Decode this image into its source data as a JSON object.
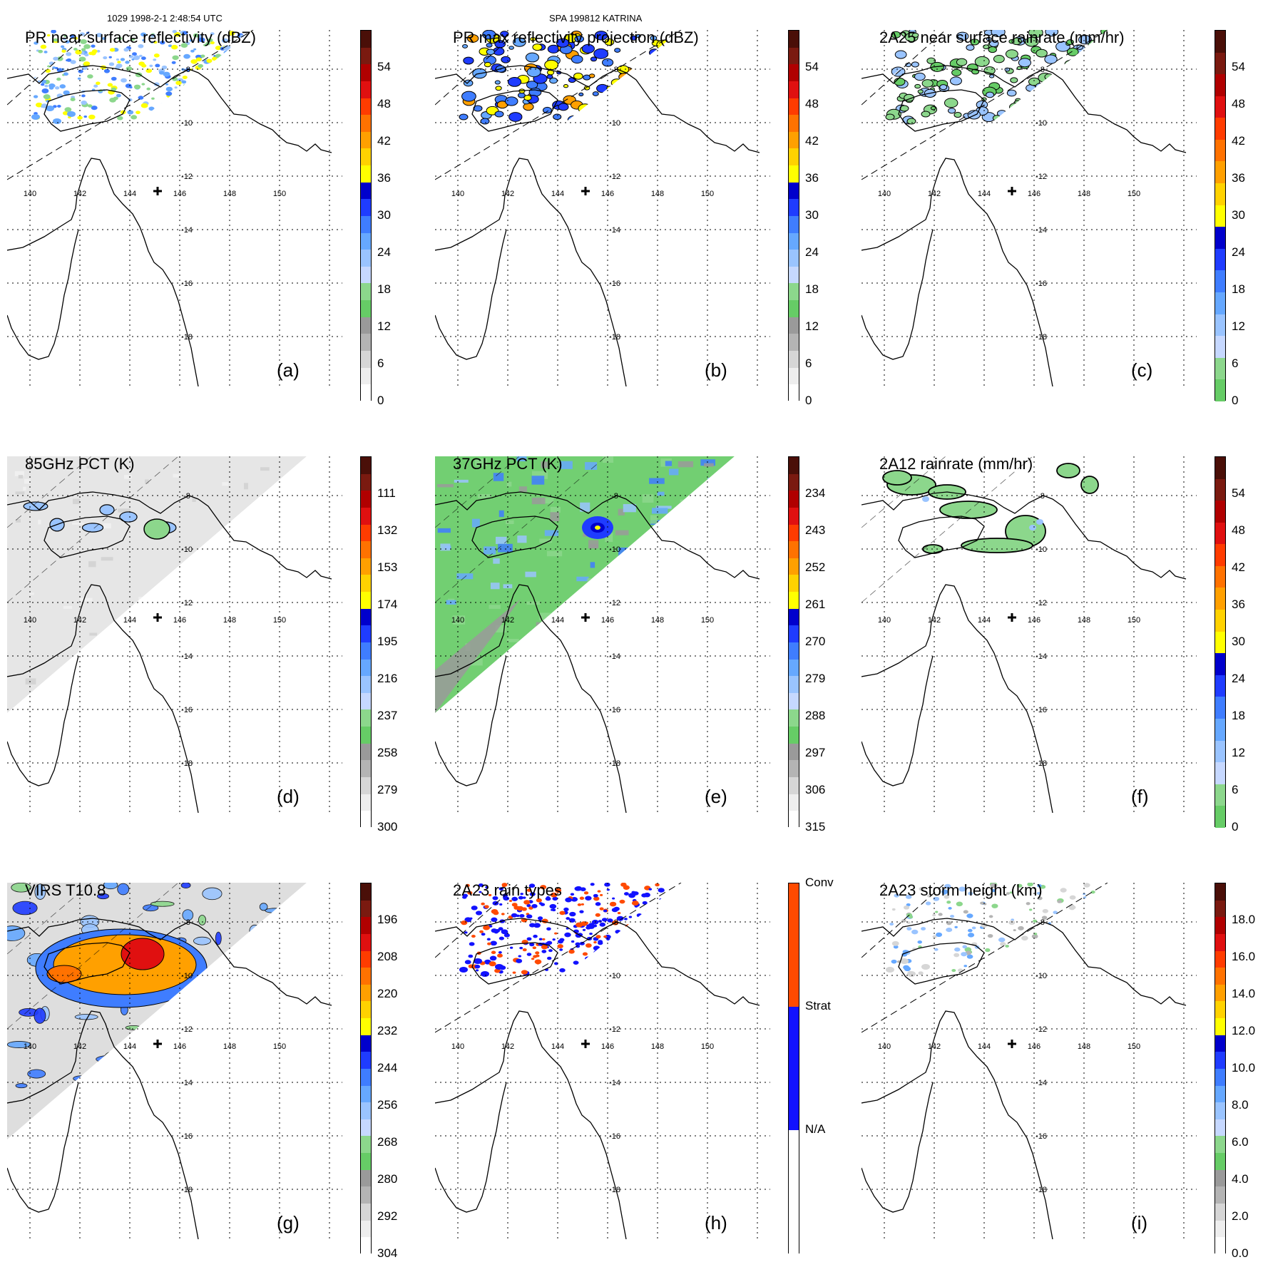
{
  "header": {
    "left": "1029 1998-2-1 2:48:54 UTC",
    "center": "SPA 199812 KATRINA"
  },
  "map": {
    "lon_labels": [
      "140",
      "142",
      "144",
      "146",
      "148",
      "150"
    ],
    "lat_labels": [
      "-8",
      "-10",
      "-12",
      "-14",
      "-16",
      "-18"
    ]
  },
  "panels": [
    {
      "id": "a",
      "title": "PR near surface reflectivity (dBZ)",
      "label": "(a)",
      "ticks": [
        "0",
        "6",
        "12",
        "18",
        "24",
        "30",
        "36",
        "42",
        "48",
        "54"
      ],
      "swath": "pr",
      "overlay": "pr_reflectivity"
    },
    {
      "id": "b",
      "title": "PR max reflectivity projection (dBZ)",
      "label": "(b)",
      "ticks": [
        "0",
        "6",
        "12",
        "18",
        "24",
        "30",
        "36",
        "42",
        "48",
        "54"
      ],
      "swath": "pr",
      "overlay": "pr_max"
    },
    {
      "id": "c",
      "title": "2A25 near surface rainrate (mm/hr)",
      "label": "(c)",
      "ticks": [
        "0",
        "6",
        "12",
        "18",
        "24",
        "30",
        "36",
        "42",
        "48",
        "54"
      ],
      "swath": "pr",
      "overlay": "pr_rain"
    },
    {
      "id": "d",
      "title": "85GHz PCT (K)",
      "label": "(d)",
      "ticks": [
        "300",
        "279",
        "258",
        "237",
        "216",
        "195",
        "174",
        "153",
        "132",
        "111"
      ],
      "swath": "tmi",
      "overlay": "pct85"
    },
    {
      "id": "e",
      "title": "37GHz PCT (K)",
      "label": "(e)",
      "ticks": [
        "315",
        "306",
        "297",
        "288",
        "279",
        "270",
        "261",
        "252",
        "243",
        "234"
      ],
      "swath": "tmi",
      "overlay": "pct37"
    },
    {
      "id": "f",
      "title": "2A12 rainrate (mm/hr)",
      "label": "(f)",
      "ticks": [
        "0",
        "6",
        "12",
        "18",
        "24",
        "30",
        "36",
        "42",
        "48",
        "54"
      ],
      "swath": "tmi",
      "overlay": "tmi_rain"
    },
    {
      "id": "g",
      "title": "VIRS T10.8",
      "label": "(g)",
      "ticks": [
        "304",
        "292",
        "280",
        "268",
        "256",
        "244",
        "232",
        "220",
        "208",
        "196"
      ],
      "swath": "tmi",
      "overlay": "virs"
    },
    {
      "id": "h",
      "title": "2A23 rain types",
      "label": "(h)",
      "ticks": [
        "N/A",
        "Strat",
        "Conv"
      ],
      "swath": "pr",
      "overlay": "raintype"
    },
    {
      "id": "i",
      "title": "2A23 storm height (km)",
      "label": "(i)",
      "ticks": [
        "0.0",
        "2.0",
        "4.0",
        "6.0",
        "8.0",
        "10.0",
        "12.0",
        "14.0",
        "16.0",
        "18.0"
      ],
      "swath": "pr",
      "overlay": "height"
    }
  ],
  "colors": {
    "palette": [
      "#ffffff",
      "#eeeeee",
      "#d6d6d6",
      "#b4b4b4",
      "#9a9a9a",
      "#66cc66",
      "#8cd78c",
      "#c6d8ff",
      "#9ac4ff",
      "#66a8ff",
      "#3f7dff",
      "#1f3cff",
      "#0000cc",
      "#ffff00",
      "#ffd200",
      "#ffa000",
      "#ff7200",
      "#ff3c00",
      "#e01010",
      "#b00000",
      "#7a1a10",
      "#4a0f08"
    ],
    "raintype": [
      "#ffffff",
      "#1212ff",
      "#ff4a00"
    ]
  }
}
